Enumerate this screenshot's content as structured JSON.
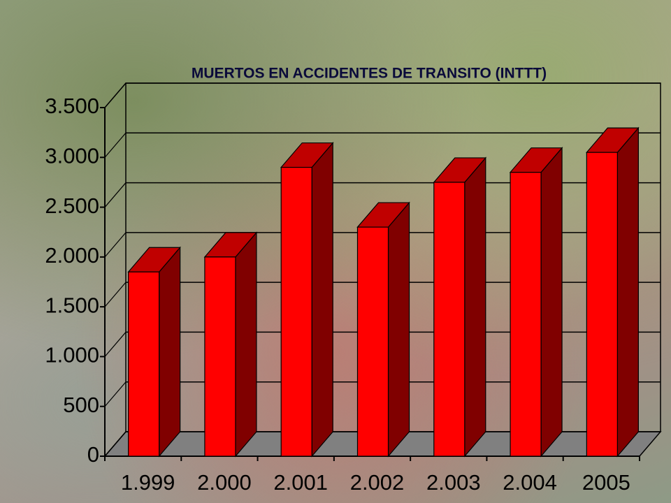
{
  "chart_data": {
    "type": "bar3d",
    "title": "MUERTOS EN ACCIDENTES DE TRANSITO (INTTT)",
    "categories": [
      "1.999",
      "2.000",
      "2.001",
      "2.002",
      "2.003",
      "2.004",
      "2005"
    ],
    "values": [
      1850,
      2000,
      2900,
      2300,
      2750,
      2850,
      3050
    ],
    "color": "#ff0000",
    "ylim": [
      0,
      3500
    ],
    "yticks": [
      0,
      500,
      {
        "value": 1000,
        "label": "1.000"
      },
      {
        "value": 1500,
        "label": "1.500"
      },
      {
        "value": 2000,
        "label": "2.000"
      },
      {
        "value": 2500,
        "label": "2.500"
      },
      {
        "value": 3000,
        "label": "3.000"
      },
      {
        "value": 3500,
        "label": "3.500"
      }
    ],
    "grid": true
  }
}
